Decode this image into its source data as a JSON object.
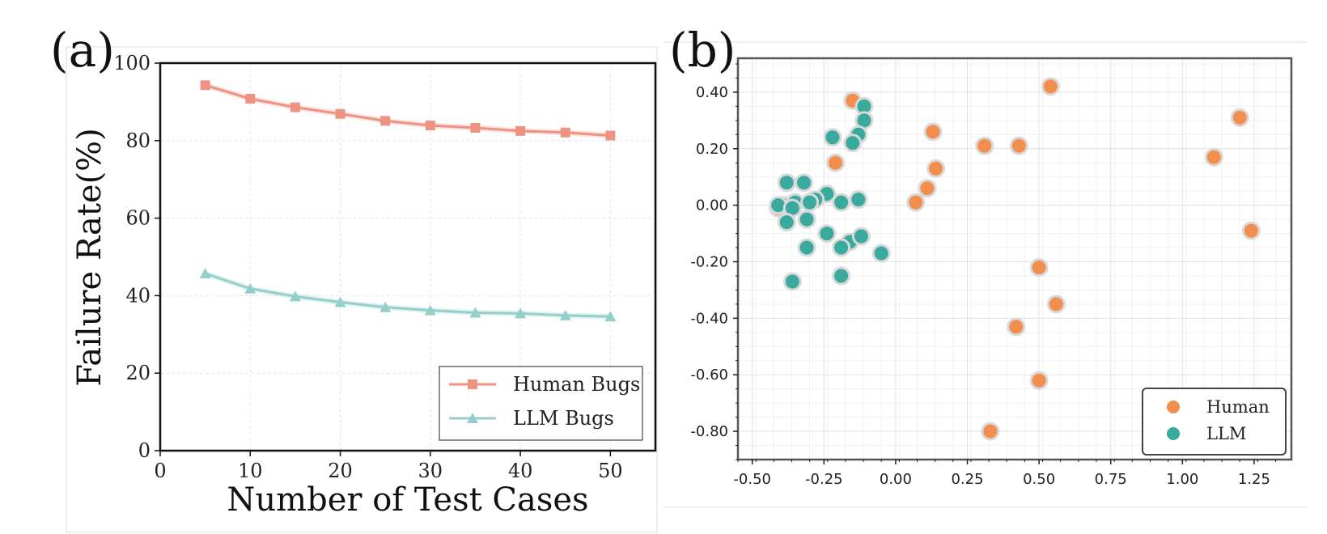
{
  "chart_data": [
    {
      "panel_label": "(a)",
      "type": "line",
      "xlabel": "Number of Test Cases",
      "ylabel": "Failure Rate(%)",
      "xlim": [
        0,
        55
      ],
      "ylim": [
        0,
        100
      ],
      "xticks": [
        0,
        10,
        20,
        30,
        40,
        50
      ],
      "yticks": [
        0,
        20,
        40,
        60,
        80,
        100
      ],
      "grid": true,
      "legend_position": "bottom-right",
      "x": [
        5,
        10,
        15,
        20,
        25,
        30,
        35,
        40,
        45,
        50
      ],
      "series": [
        {
          "name": "Human Bugs",
          "marker": "square",
          "color": "#ee9282",
          "values": [
            94.3,
            90.8,
            88.6,
            86.9,
            85.1,
            83.9,
            83.3,
            82.5,
            82.1,
            81.3
          ]
        },
        {
          "name": "LLM Bugs",
          "marker": "triangle",
          "color": "#94cfcb",
          "values": [
            45.7,
            41.8,
            39.8,
            38.3,
            37.0,
            36.2,
            35.6,
            35.4,
            34.9,
            34.6
          ]
        }
      ]
    },
    {
      "panel_label": "(b)",
      "type": "scatter",
      "xlabel": "",
      "ylabel": "",
      "xlim": [
        -0.55,
        1.38
      ],
      "ylim": [
        -0.9,
        0.52
      ],
      "xticks": [
        -0.5,
        -0.25,
        0.0,
        0.25,
        0.5,
        0.75,
        1.0,
        1.25
      ],
      "xtick_labels": [
        "-0.50",
        "-0.25",
        "0.00",
        "0.25",
        "0.50",
        "0.75",
        "1.00",
        "1.25"
      ],
      "yticks": [
        0.4,
        0.2,
        0.0,
        -0.2,
        -0.4,
        -0.6,
        -0.8
      ],
      "ytick_labels": [
        "0.40",
        "0.20",
        "0.00",
        "-0.20",
        "-0.40",
        "-0.60",
        "-0.80"
      ],
      "grid": true,
      "legend_position": "bottom-right",
      "series": [
        {
          "name": "Human",
          "color": "#f28e4e",
          "points": [
            [
              0.54,
              0.42
            ],
            [
              -0.15,
              0.37
            ],
            [
              1.2,
              0.31
            ],
            [
              0.13,
              0.26
            ],
            [
              0.31,
              0.21
            ],
            [
              0.43,
              0.21
            ],
            [
              1.11,
              0.17
            ],
            [
              -0.21,
              0.15
            ],
            [
              0.14,
              0.13
            ],
            [
              0.11,
              0.06
            ],
            [
              0.07,
              0.01
            ],
            [
              -0.39,
              0.0
            ],
            [
              -0.41,
              -0.01
            ],
            [
              1.24,
              -0.09
            ],
            [
              0.5,
              -0.22
            ],
            [
              0.56,
              -0.35
            ],
            [
              0.42,
              -0.43
            ],
            [
              0.5,
              -0.62
            ],
            [
              0.33,
              -0.8
            ]
          ]
        },
        {
          "name": "LLM",
          "color": "#3aa99e",
          "points": [
            [
              -0.11,
              0.35
            ],
            [
              -0.11,
              0.3
            ],
            [
              -0.13,
              0.25
            ],
            [
              -0.22,
              0.24
            ],
            [
              -0.15,
              0.22
            ],
            [
              -0.38,
              0.08
            ],
            [
              -0.32,
              0.08
            ],
            [
              -0.24,
              0.04
            ],
            [
              -0.28,
              0.02
            ],
            [
              -0.35,
              0.01
            ],
            [
              -0.13,
              0.02
            ],
            [
              -0.3,
              0.01
            ],
            [
              -0.19,
              0.01
            ],
            [
              -0.41,
              0.0
            ],
            [
              -0.36,
              -0.01
            ],
            [
              -0.31,
              -0.05
            ],
            [
              -0.38,
              -0.06
            ],
            [
              -0.24,
              -0.1
            ],
            [
              -0.16,
              -0.13
            ],
            [
              -0.12,
              -0.11
            ],
            [
              -0.19,
              -0.15
            ],
            [
              -0.31,
              -0.15
            ],
            [
              -0.05,
              -0.17
            ],
            [
              -0.19,
              -0.25
            ],
            [
              -0.36,
              -0.27
            ]
          ]
        }
      ]
    }
  ]
}
